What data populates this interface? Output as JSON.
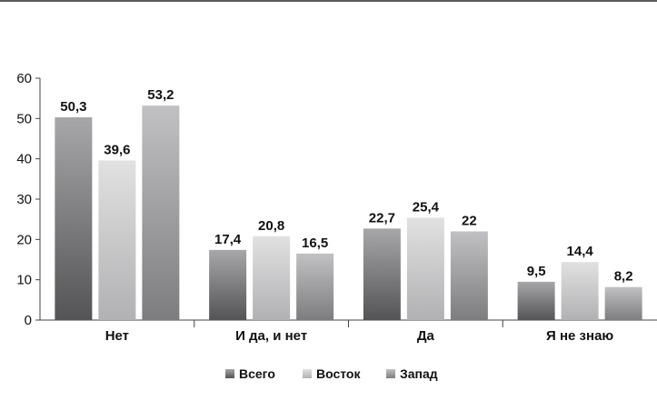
{
  "chart_data": {
    "type": "bar",
    "categories": [
      "Нет",
      "И да, и нет",
      "Да",
      "Я не знаю"
    ],
    "series": [
      {
        "name": "Всего",
        "values": [
          50.3,
          17.4,
          22.7,
          9.5
        ],
        "labels": [
          "50,3",
          "17,4",
          "22,7",
          "9,5"
        ],
        "color": "#5f5f62"
      },
      {
        "name": "Восток",
        "values": [
          39.6,
          20.8,
          25.4,
          14.4
        ],
        "labels": [
          "39,6",
          "20,8",
          "25,4",
          "14,4"
        ],
        "color": "#c9c9cb"
      },
      {
        "name": "Запад",
        "values": [
          53.2,
          16.5,
          22,
          8.2
        ],
        "labels": [
          "53,2",
          "16,5",
          "22",
          "8,2"
        ],
        "color": "#8e8e91"
      }
    ],
    "yticks": [
      "0",
      "10",
      "20",
      "30",
      "40",
      "50",
      "60"
    ],
    "ylim": [
      0,
      60
    ],
    "legend_position": "bottom",
    "grid": false
  }
}
